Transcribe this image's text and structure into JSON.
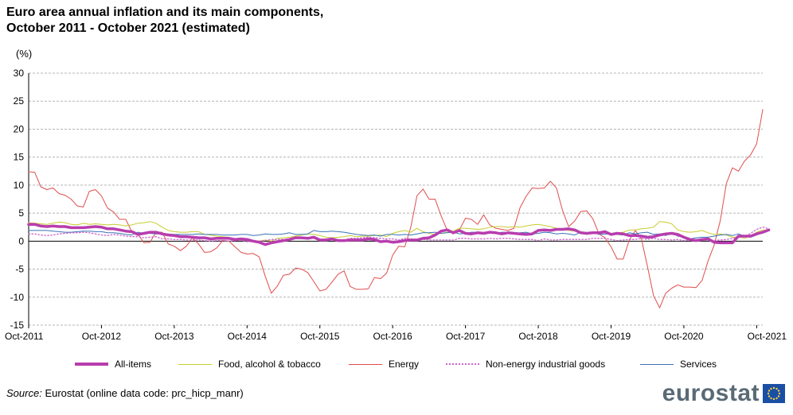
{
  "title_line1": "Euro area annual inflation and its main components,",
  "title_line2": "October 2011 - October 2021 (estimated)",
  "unit_label": "(%)",
  "source_label": "Source:",
  "source_text": "Eurostat (online data code: prc_hicp_manr)",
  "logo_text": "eurostat",
  "chart_data": {
    "type": "line",
    "title": "Euro area annual inflation and its main components, October 2011 - October 2021 (estimated)",
    "ylabel": "(%)",
    "xlabel": "",
    "ylim": [
      -15,
      30
    ],
    "yticks": [
      -15,
      -10,
      -5,
      0,
      5,
      10,
      15,
      20,
      25,
      30
    ],
    "grid": true,
    "legend_position": "bottom",
    "x_start": "Oct-2011",
    "x_end": "Oct-2021",
    "x_tick_labels": [
      "Oct-2011",
      "Oct-2012",
      "Oct-2013",
      "Oct-2014",
      "Oct-2015",
      "Oct-2016",
      "Oct-2017",
      "Oct-2018",
      "Oct-2019",
      "Oct-2020",
      "Oct-2021"
    ],
    "series": [
      {
        "name": "Energy",
        "color": "#e04d4d",
        "style": "solid",
        "values": [
          12.4,
          12.3,
          9.7,
          9.2,
          9.5,
          8.5,
          8.2,
          7.5,
          6.3,
          6.1,
          8.9,
          9.2,
          8.1,
          5.9,
          5.2,
          3.9,
          3.9,
          1.7,
          1.3,
          -0.3,
          -0.2,
          1.6,
          1.6,
          -0.5,
          -0.9,
          -1.7,
          -0.9,
          0.6,
          -0.5,
          -2.0,
          -1.9,
          -1.2,
          0.1,
          0.0,
          -1.0,
          -2.0,
          -2.3,
          -2.2,
          -2.8,
          -6.3,
          -9.3,
          -8.0,
          -6.1,
          -5.9,
          -4.8,
          -5.0,
          -5.6,
          -7.2,
          -8.9,
          -8.6,
          -7.3,
          -5.9,
          -5.3,
          -8.1,
          -8.6,
          -8.6,
          -8.5,
          -6.5,
          -6.7,
          -5.7,
          -2.5,
          -0.9,
          -1.0,
          2.5,
          8.1,
          9.3,
          7.5,
          7.5,
          4.5,
          1.9,
          1.3,
          2.0,
          4.1,
          3.9,
          3.0,
          4.7,
          2.9,
          2.3,
          2.1,
          1.9,
          2.3,
          6.0,
          8.0,
          9.5,
          9.4,
          9.5,
          10.7,
          9.5,
          5.5,
          2.6,
          3.6,
          5.3,
          5.4,
          4.0,
          1.3,
          0.6,
          -1.0,
          -3.2,
          -3.2,
          0.2,
          1.9,
          0.4,
          -4.5,
          -9.7,
          -11.9,
          -9.3,
          -8.4,
          -7.8,
          -8.2,
          -8.2,
          -8.3,
          -7.0,
          -3.5,
          -0.7,
          3.7,
          10.3,
          13.1,
          12.5,
          14.3,
          15.4,
          17.4,
          23.5
        ]
      },
      {
        "name": "Food, alcohol & tobacco",
        "color": "#c8cc2e",
        "style": "solid",
        "values": [
          3.3,
          3.2,
          3.1,
          3.0,
          3.2,
          3.4,
          3.3,
          3.0,
          2.9,
          3.2,
          3.0,
          3.1,
          3.0,
          2.9,
          3.0,
          2.9,
          2.7,
          2.9,
          3.2,
          3.3,
          3.5,
          3.2,
          2.5,
          1.9,
          1.7,
          1.6,
          1.6,
          1.7,
          1.7,
          1.2,
          1.1,
          0.9,
          0.8,
          0.7,
          0.3,
          0.5,
          0.1,
          -0.1,
          0.0,
          0.2,
          0.0,
          0.5,
          0.6,
          0.7,
          0.9,
          1.1,
          1.3,
          1.2,
          1.0,
          0.7,
          0.6,
          0.7,
          0.8,
          1.0,
          0.8,
          0.9,
          0.9,
          1.0,
          1.1,
          0.8,
          1.4,
          1.7,
          1.9,
          1.6,
          2.3,
          1.7,
          1.4,
          1.2,
          1.4,
          1.6,
          1.8,
          2.3,
          2.3,
          2.2,
          2.1,
          2.2,
          2.5,
          2.6,
          2.6,
          2.5,
          2.6,
          2.5,
          2.7,
          2.9,
          3.0,
          2.8,
          2.6,
          2.3,
          2.1,
          1.9,
          1.8,
          1.7,
          1.5,
          1.4,
          1.6,
          1.6,
          1.4,
          1.5,
          1.6,
          2.0,
          2.0,
          2.2,
          2.3,
          2.5,
          3.5,
          3.4,
          3.1,
          2.0,
          1.7,
          1.6,
          1.7,
          1.9,
          1.5,
          1.2,
          1.3,
          1.1,
          0.7,
          0.8,
          0.5,
          0.9,
          1.6,
          2.0,
          1.9
        ]
      },
      {
        "name": "Services",
        "color": "#3a72b8",
        "style": "solid",
        "values": [
          1.9,
          1.9,
          1.9,
          1.9,
          1.8,
          1.7,
          1.6,
          1.6,
          1.7,
          1.8,
          1.8,
          1.7,
          1.7,
          1.5,
          1.5,
          1.4,
          1.2,
          1.1,
          1.6,
          1.4,
          1.4,
          1.3,
          1.3,
          1.3,
          1.2,
          1.2,
          1.2,
          1.2,
          1.3,
          1.2,
          1.2,
          1.2,
          1.1,
          1.1,
          1.1,
          1.2,
          1.2,
          1.0,
          1.1,
          1.3,
          1.2,
          1.2,
          1.3,
          1.5,
          1.2,
          1.2,
          1.3,
          1.9,
          1.7,
          1.7,
          1.8,
          1.7,
          1.6,
          1.4,
          1.2,
          1.1,
          1.0,
          1.1,
          0.9,
          1.2,
          1.2,
          1.1,
          1.2,
          1.1,
          1.3,
          1.5,
          1.5,
          1.6,
          1.4,
          1.5,
          1.6,
          1.3,
          1.4,
          1.6,
          1.6,
          1.4,
          1.5,
          1.4,
          1.6,
          1.6,
          1.3,
          1.5,
          1.6,
          1.3,
          1.4,
          1.6,
          1.5,
          1.3,
          1.4,
          1.3,
          1.1,
          1.6,
          1.2,
          1.6,
          1.2,
          1.3,
          1.2,
          1.2,
          1.1,
          1.5,
          1.3,
          1.5,
          1.6,
          1.2,
          1.3,
          1.0,
          1.5,
          0.9,
          0.7,
          0.4,
          0.6,
          0.7,
          0.7,
          0.9,
          1.1,
          1.2,
          1.0,
          1.3,
          0.9,
          0.7,
          1.1,
          1.7,
          2.1
        ]
      },
      {
        "name": "Non-energy industrial goods",
        "color": "#c967c9",
        "style": "dotted",
        "values": [
          1.3,
          1.3,
          1.1,
          1.0,
          1.1,
          1.3,
          1.4,
          1.5,
          1.5,
          1.6,
          1.5,
          1.3,
          1.1,
          1.0,
          1.2,
          1.1,
          0.9,
          0.8,
          0.8,
          0.6,
          0.7,
          0.8,
          0.4,
          0.4,
          0.3,
          0.3,
          0.2,
          0.2,
          0.2,
          0.1,
          0.0,
          0.1,
          0.1,
          0.0,
          0.1,
          0.2,
          -0.1,
          -0.1,
          0.0,
          0.1,
          0.3,
          0.3,
          0.3,
          0.3,
          0.6,
          0.6,
          0.6,
          0.5,
          0.3,
          0.4,
          0.4,
          0.3,
          0.2,
          0.5,
          0.5,
          0.6,
          0.7,
          0.6,
          0.5,
          0.4,
          0.4,
          0.2,
          0.5,
          0.4,
          0.3,
          0.3,
          0.2,
          0.2,
          0.2,
          0.2,
          0.2,
          0.5,
          0.5,
          0.4,
          0.4,
          0.4,
          0.5,
          0.4,
          0.5,
          0.5,
          0.4,
          0.3,
          0.3,
          0.3,
          0.1,
          0.4,
          0.2,
          0.2,
          0.3,
          0.3,
          0.3,
          0.3,
          0.3,
          0.5,
          0.5,
          0.5,
          0.3,
          0.1,
          0.2,
          0.3,
          0.3,
          0.5,
          0.3,
          0.5,
          0.3,
          0.3,
          0.2,
          0.3,
          0.1,
          0.2,
          0.3,
          0.3,
          0.2,
          0.1,
          0.2,
          0.3,
          0.5,
          0.7,
          0.8,
          1.4,
          2.1,
          2.5,
          2.2
        ]
      },
      {
        "name": "All-items",
        "color": "#b83dae",
        "style": "thick",
        "values": [
          3.0,
          3.0,
          2.7,
          2.6,
          2.7,
          2.6,
          2.6,
          2.4,
          2.4,
          2.4,
          2.5,
          2.6,
          2.5,
          2.2,
          2.2,
          2.0,
          1.8,
          1.7,
          1.2,
          1.4,
          1.6,
          1.6,
          1.3,
          1.1,
          1.0,
          0.8,
          0.8,
          0.7,
          0.6,
          0.6,
          0.4,
          0.5,
          0.5,
          0.5,
          0.3,
          0.4,
          0.3,
          0.0,
          -0.2,
          -0.6,
          -0.3,
          -0.1,
          0.1,
          0.3,
          0.6,
          0.6,
          0.5,
          0.7,
          0.2,
          0.2,
          0.4,
          0.1,
          0.1,
          0.2,
          0.2,
          0.2,
          0.4,
          0.3,
          -0.1,
          0.0,
          -0.2,
          -0.1,
          0.1,
          0.2,
          0.2,
          0.5,
          0.6,
          1.1,
          1.8,
          2.0,
          1.5,
          1.9,
          1.4,
          1.3,
          1.5,
          1.4,
          1.6,
          1.5,
          1.3,
          1.5,
          1.4,
          1.3,
          1.2,
          1.3,
          1.9,
          2.0,
          1.9,
          2.1,
          2.1,
          2.2,
          2.0,
          1.5,
          1.4,
          1.5,
          1.5,
          1.7,
          1.2,
          1.4,
          1.3,
          1.0,
          1.0,
          0.9,
          0.7,
          0.8,
          1.1,
          1.3,
          1.4,
          1.2,
          0.7,
          0.3,
          0.1,
          0.3,
          0.4,
          -0.2,
          -0.3,
          -0.3,
          -0.3,
          0.9,
          0.9,
          0.9,
          1.3,
          1.6,
          2.0
        ]
      }
    ]
  },
  "legend": [
    {
      "label": "All-items",
      "color": "#b83dae",
      "style": "thick"
    },
    {
      "label": "Food, alcohol & tobacco",
      "color": "#c8cc2e",
      "style": "solid"
    },
    {
      "label": "Energy",
      "color": "#e04d4d",
      "style": "solid"
    },
    {
      "label": "Non-energy industrial goods",
      "color": "#c967c9",
      "style": "dotted"
    },
    {
      "label": "Services",
      "color": "#3a72b8",
      "style": "solid"
    }
  ]
}
